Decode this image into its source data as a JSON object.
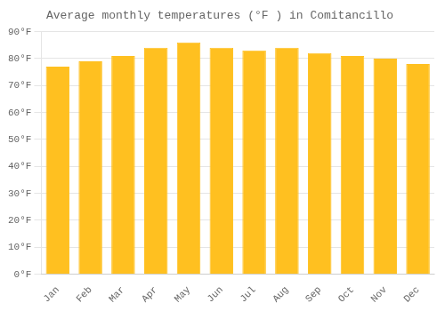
{
  "chart_data": {
    "type": "bar",
    "title": "Average monthly temperatures (°F ) in Comitancillo",
    "categories": [
      "Jan",
      "Feb",
      "Mar",
      "Apr",
      "May",
      "Jun",
      "Jul",
      "Aug",
      "Sep",
      "Oct",
      "Nov",
      "Dec"
    ],
    "values": [
      77,
      79,
      81,
      84,
      86,
      84,
      83,
      84,
      82,
      81,
      80,
      78
    ],
    "color": "#FFC020",
    "ylim": [
      0,
      90
    ],
    "yticks": [
      {
        "value": 0,
        "label": "0°F"
      },
      {
        "value": 10,
        "label": "10°F"
      },
      {
        "value": 20,
        "label": "20°F"
      },
      {
        "value": 30,
        "label": "30°F"
      },
      {
        "value": 40,
        "label": "40°F"
      },
      {
        "value": 50,
        "label": "50°F"
      },
      {
        "value": 60,
        "label": "60°F"
      },
      {
        "value": 70,
        "label": "70°F"
      },
      {
        "value": 80,
        "label": "80°F"
      },
      {
        "value": 90,
        "label": "90°F"
      }
    ],
    "grid": true
  }
}
